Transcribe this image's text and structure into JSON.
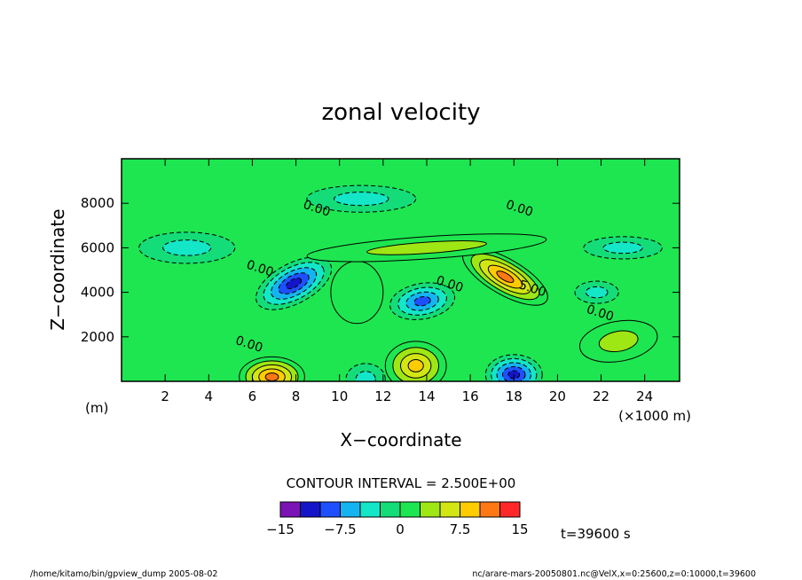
{
  "chart_data": {
    "type": "heatmap",
    "title": "zonal velocity",
    "xlabel": "X−coordinate",
    "ylabel": "Z−coordinate",
    "x_unit": "(m)",
    "x_scale_note": "(×1000 m)",
    "xlim": [
      0,
      25600
    ],
    "ylim": [
      0,
      10000
    ],
    "x_ticks": [
      "2",
      "4",
      "6",
      "8",
      "10",
      "12",
      "14",
      "16",
      "18",
      "20",
      "22",
      "24"
    ],
    "x_tick_values": [
      2,
      4,
      6,
      8,
      10,
      12,
      14,
      16,
      18,
      20,
      22,
      24
    ],
    "y_ticks": [
      "2000",
      "4000",
      "6000",
      "8000"
    ],
    "y_tick_values": [
      2000,
      4000,
      6000,
      8000
    ],
    "contour_interval_label": "CONTOUR INTERVAL = 2.500E+00",
    "time_label": "t=39600 s",
    "contour_labels": [
      {
        "text": "0.00",
        "x": 8.9,
        "z": 7600
      },
      {
        "text": "0.00",
        "x": 18.2,
        "z": 7600
      },
      {
        "text": "0.00",
        "x": 6.3,
        "z": 4900
      },
      {
        "text": "0.00",
        "x": 15.0,
        "z": 4200
      },
      {
        "text": "0.00",
        "x": 21.9,
        "z": 2900
      },
      {
        "text": "0.00",
        "x": 5.8,
        "z": 1500
      },
      {
        "text": "5.00",
        "x": 18.8,
        "z": 4000
      }
    ],
    "features": [
      {
        "x": 7.9,
        "z": 4400,
        "value": -12.5,
        "rx": 1.9,
        "rz": 900,
        "rot": -28
      },
      {
        "x": 13.8,
        "z": 3600,
        "value": -10,
        "rx": 1.5,
        "rz": 800,
        "rot": -10
      },
      {
        "x": 18.0,
        "z": 300,
        "value": -11,
        "rx": 1.3,
        "rz": 900,
        "rot": 0
      },
      {
        "x": 6.9,
        "z": 200,
        "value": 12,
        "rx": 1.5,
        "rz": 900,
        "rot": 0
      },
      {
        "x": 13.5,
        "z": 700,
        "value": 9,
        "rx": 1.4,
        "rz": 1100,
        "rot": 0
      },
      {
        "x": 17.6,
        "z": 4700,
        "value": 11,
        "rx": 2.2,
        "rz": 800,
        "rot": 30
      },
      {
        "x": 10.8,
        "z": 4000,
        "value": 2.5,
        "rx": 1.2,
        "rz": 1400,
        "rot": 0
      },
      {
        "x": 22.8,
        "z": 1800,
        "value": 3,
        "rx": 1.8,
        "rz": 900,
        "rot": -10
      },
      {
        "x": 14.0,
        "z": 6000,
        "value": 3,
        "rx": 5.5,
        "rz": 500,
        "rot": -4
      },
      {
        "x": 11.0,
        "z": 8200,
        "value": -3,
        "rx": 2.5,
        "rz": 600,
        "rot": 0
      },
      {
        "x": 3.0,
        "z": 6000,
        "value": -3,
        "rx": 2.2,
        "rz": 700,
        "rot": 0
      },
      {
        "x": 23.0,
        "z": 6000,
        "value": -3,
        "rx": 1.8,
        "rz": 500,
        "rot": 0
      },
      {
        "x": 21.8,
        "z": 4000,
        "value": -5,
        "rx": 1.0,
        "rz": 500,
        "rot": 0
      },
      {
        "x": 11.2,
        "z": 100,
        "value": -4,
        "rx": 0.9,
        "rz": 700,
        "rot": 0
      }
    ],
    "colorbar": {
      "tick_labels": [
        "−15",
        "−7.5",
        "0",
        "7.5",
        "15"
      ],
      "tick_values": [
        -15,
        -7.5,
        0,
        7.5,
        15
      ],
      "levels": [
        -15,
        -12.5,
        -10,
        -7.5,
        -5,
        -2.5,
        0,
        2.5,
        5,
        7.5,
        10,
        12.5,
        15
      ],
      "colors": [
        "#7a14b4",
        "#1414c8",
        "#1e50ff",
        "#14b4f0",
        "#14e6c8",
        "#14dc78",
        "#1ee650",
        "#9ee614",
        "#d2e614",
        "#ffcc00",
        "#ff7814",
        "#ff2828",
        "#ff8c96"
      ]
    }
  },
  "footer": {
    "left": "/home/kitamo/bin/gpview_dump   2005-08-02",
    "right": "nc/arare-mars-20050801.nc@VelX,x=0:25600,z=0:10000,t=39600"
  }
}
